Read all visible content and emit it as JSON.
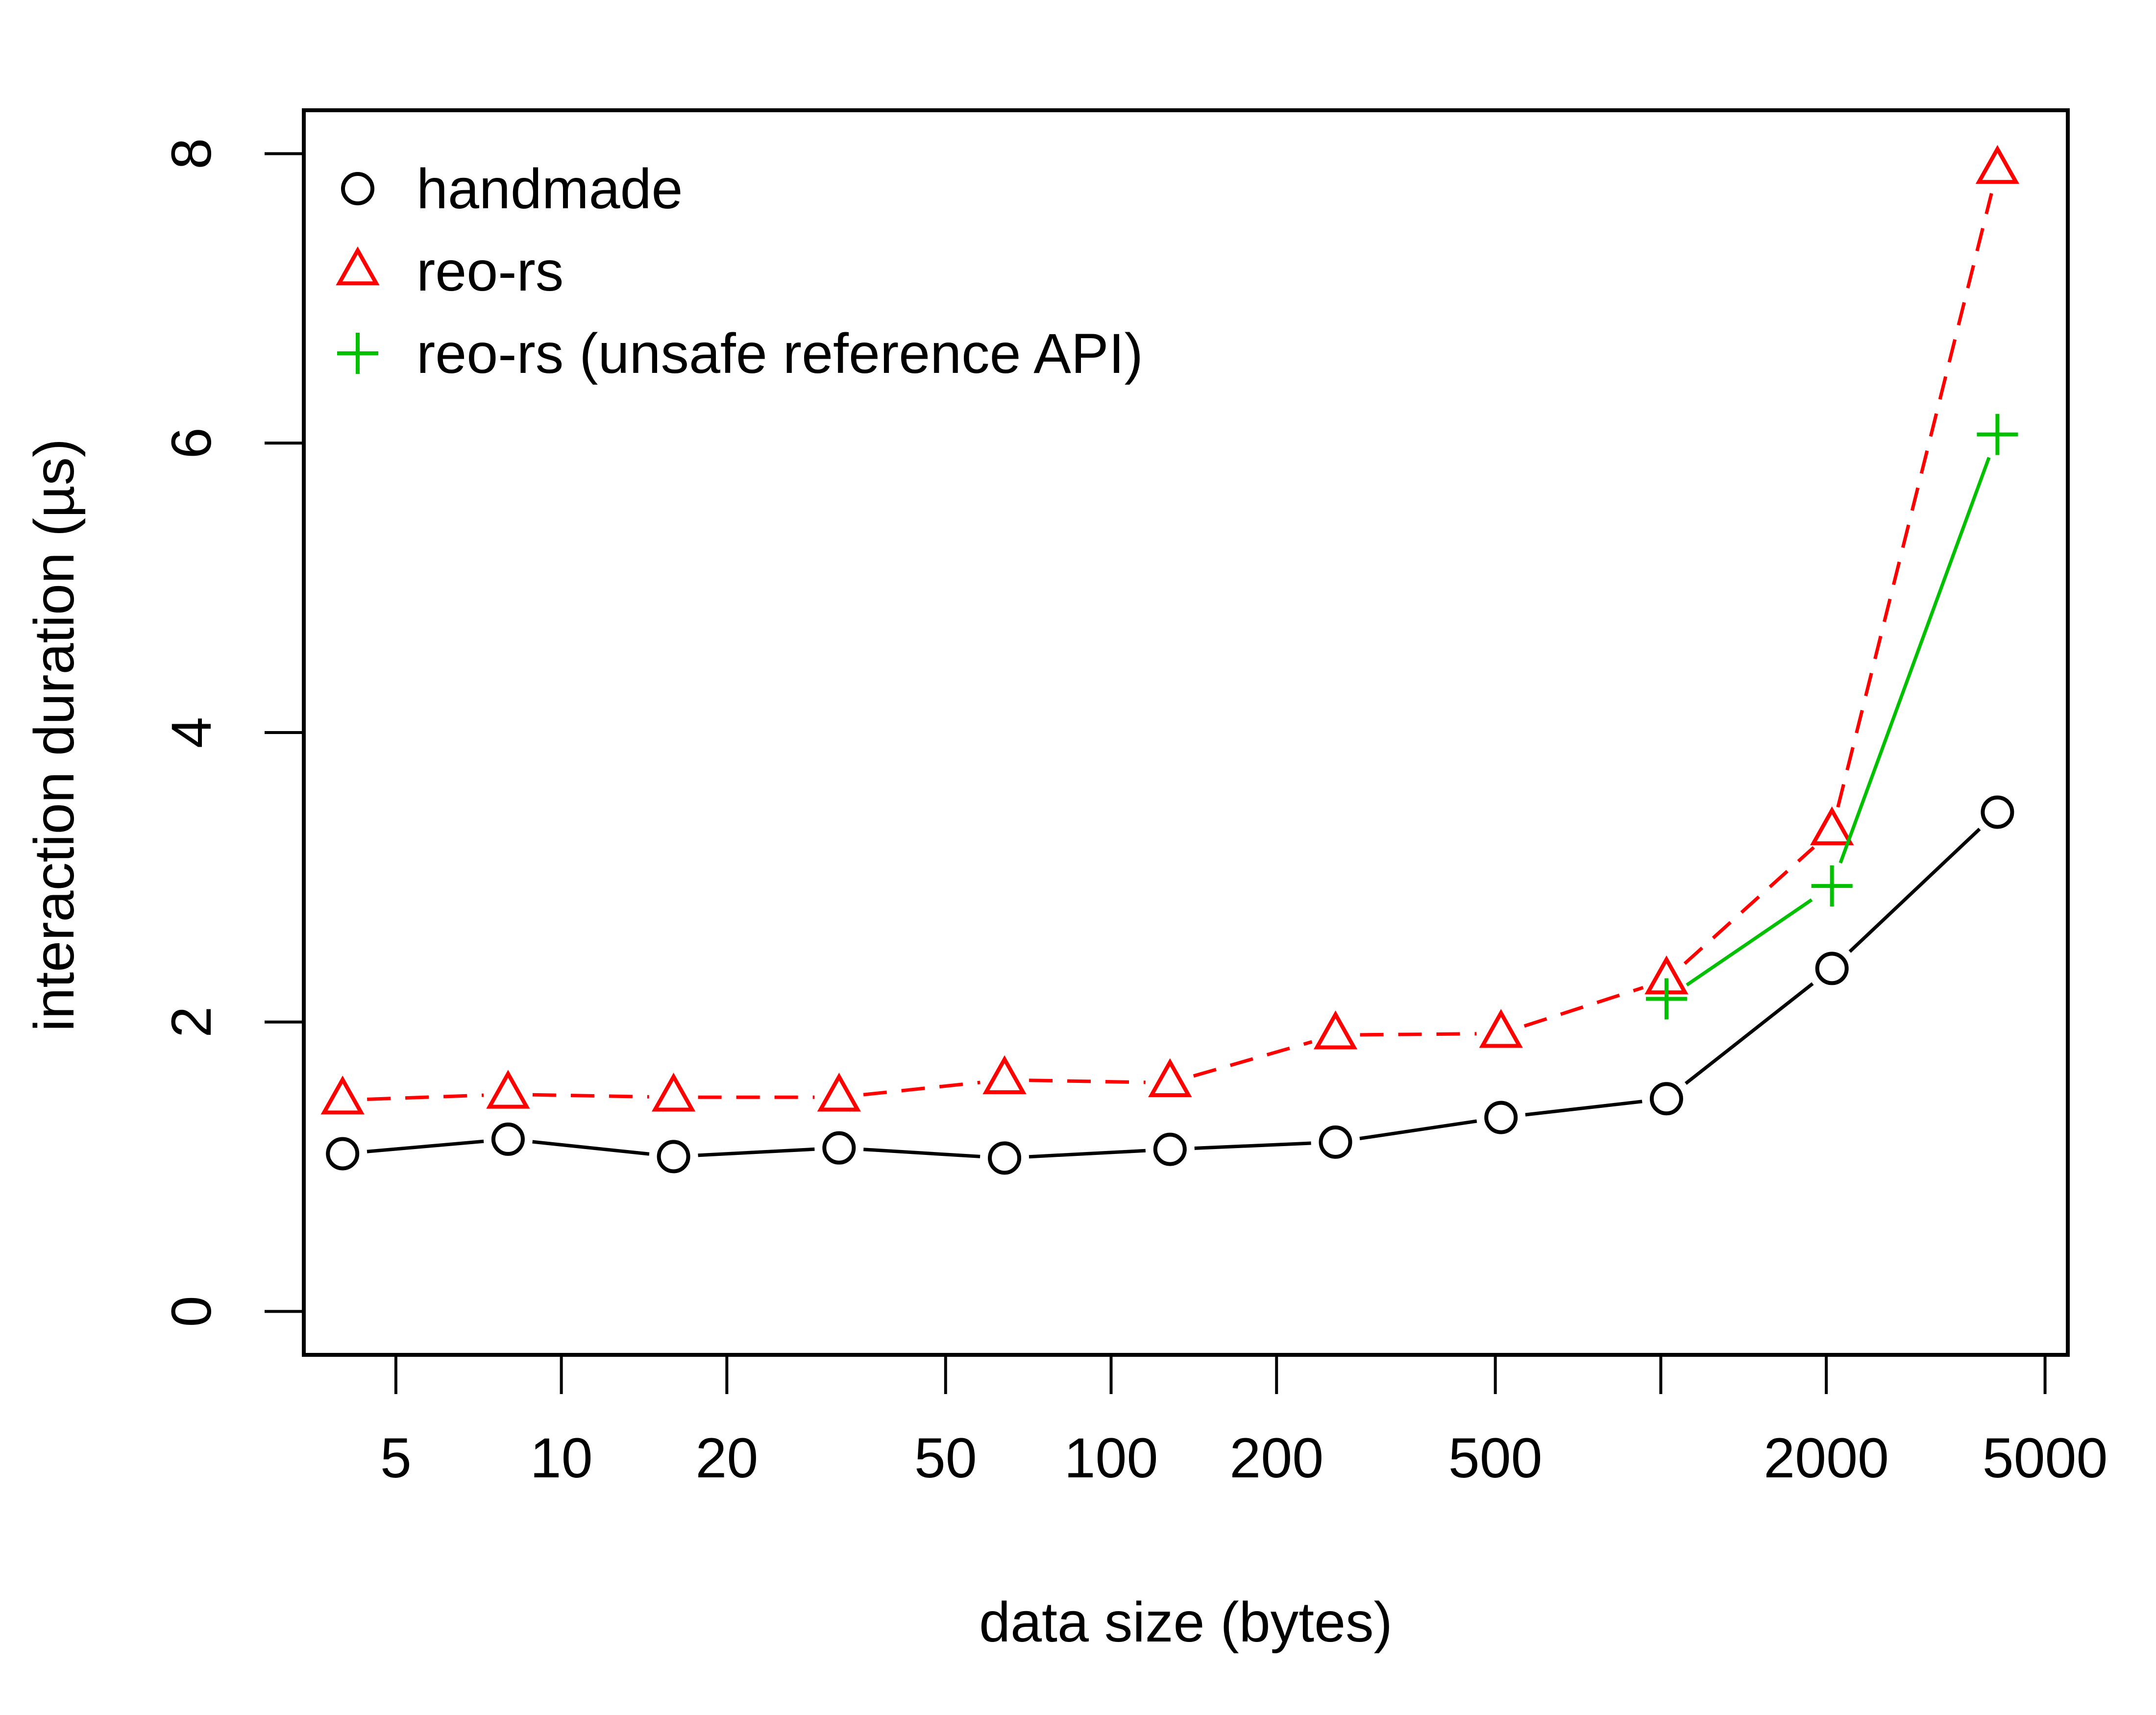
{
  "chart_data": {
    "type": "line",
    "title": "",
    "xlabel": "data size (bytes)",
    "ylabel": "interaction duration (µs)",
    "xscale": "log",
    "xlim": [
      3.4,
      5500
    ],
    "ylim": [
      -0.3,
      8.3
    ],
    "x_ticks": [
      5,
      10,
      20,
      50,
      100,
      200,
      500,
      1000,
      2000,
      5000
    ],
    "x_tick_labels": [
      "5",
      "10",
      "20",
      "50",
      "100",
      "200",
      "500",
      "",
      "2000",
      "5000"
    ],
    "y_ticks": [
      0,
      2,
      4,
      6,
      8
    ],
    "y_tick_labels": [
      "0",
      "2",
      "4",
      "6",
      "8"
    ],
    "grid": false,
    "legend_position": "top-left",
    "series": [
      {
        "name": "handmade",
        "color": "#000000",
        "marker": "circle",
        "line": "solid",
        "x": [
          4,
          8,
          16,
          32,
          64,
          128,
          256,
          512,
          1024,
          2048,
          4096
        ],
        "y": [
          1.09,
          1.19,
          1.07,
          1.13,
          1.06,
          1.12,
          1.17,
          1.34,
          1.47,
          2.37,
          3.45
        ]
      },
      {
        "name": "reo-rs",
        "color": "#ff0000",
        "marker": "triangle",
        "line": "dashed",
        "x": [
          4,
          8,
          16,
          32,
          64,
          128,
          256,
          512,
          1024,
          2048,
          4096
        ],
        "y": [
          1.46,
          1.5,
          1.48,
          1.48,
          1.6,
          1.58,
          1.91,
          1.92,
          2.29,
          3.32,
          7.89
        ]
      },
      {
        "name": "reo-rs (unsafe reference API)",
        "color": "#00c000",
        "marker": "plus",
        "line": "solid",
        "x": [
          1024,
          2048,
          4096
        ],
        "y": [
          2.16,
          2.94,
          6.06
        ]
      }
    ]
  }
}
